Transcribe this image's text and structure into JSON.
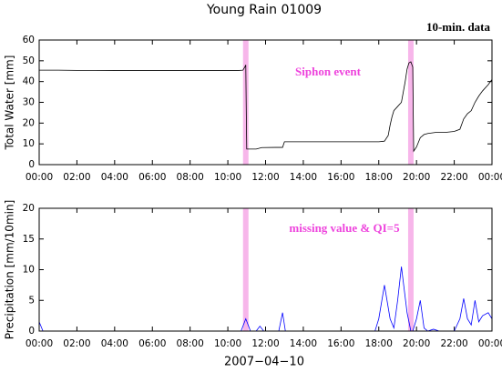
{
  "title": "Young Rain 01009",
  "note": "10-min. data",
  "xlabel": "2007−04−10",
  "chart_data": [
    {
      "type": "line",
      "ylabel": "Total Water [mm]",
      "annotation": "Siphon event",
      "xlim": [
        0,
        24
      ],
      "ylim": [
        0,
        60
      ],
      "yticks": [
        0,
        10,
        20,
        30,
        40,
        50,
        60
      ],
      "xticks": [
        {
          "value": 0,
          "label": "00:00"
        },
        {
          "value": 2,
          "label": "02:00"
        },
        {
          "value": 4,
          "label": "04:00"
        },
        {
          "value": 6,
          "label": "06:00"
        },
        {
          "value": 8,
          "label": "08:00"
        },
        {
          "value": 10,
          "label": "10:00"
        },
        {
          "value": 12,
          "label": "12:00"
        },
        {
          "value": 14,
          "label": "14:00"
        },
        {
          "value": 16,
          "label": "16:00"
        },
        {
          "value": 18,
          "label": "18:00"
        },
        {
          "value": 20,
          "label": "20:00"
        },
        {
          "value": 22,
          "label": "22:00"
        },
        {
          "value": 24,
          "label": "00:00"
        }
      ],
      "highlight_x": [
        10.95,
        19.7
      ],
      "highlight_color": "#f7b6ea",
      "x": [
        0,
        1,
        2,
        3,
        4,
        5,
        6,
        7,
        8,
        9,
        10,
        10.5,
        10.8,
        10.9,
        10.95,
        11.0,
        11.5,
        11.8,
        12.5,
        12.9,
        13.0,
        14,
        15,
        16,
        17,
        18,
        18.3,
        18.5,
        18.6,
        18.7,
        18.8,
        19.0,
        19.2,
        19.3,
        19.4,
        19.5,
        19.6,
        19.7,
        19.8,
        19.85,
        20.0,
        20.2,
        20.4,
        20.6,
        21,
        21.5,
        22,
        22.3,
        22.5,
        22.7,
        22.9,
        23.1,
        23.3,
        23.5,
        23.8,
        24
      ],
      "values": [
        45.5,
        45.5,
        45.4,
        45.4,
        45.3,
        45.3,
        45.3,
        45.3,
        45.3,
        45.3,
        45.3,
        45.3,
        45.5,
        47,
        48,
        7.5,
        7.5,
        8.2,
        8.3,
        8.3,
        11,
        11,
        11,
        11,
        11,
        11,
        11.3,
        14,
        19,
        23,
        26,
        28,
        30,
        35,
        40,
        46,
        49,
        49.5,
        47,
        6.5,
        8.5,
        13,
        14.5,
        15,
        15.5,
        15.5,
        16,
        17,
        22,
        24.5,
        26,
        30,
        33,
        35.5,
        38.5,
        41
      ],
      "color": "#000000"
    },
    {
      "type": "line",
      "ylabel": "Precipitation [mm/10min]",
      "annotation": "missing value & QI=5",
      "xlim": [
        0,
        24
      ],
      "ylim": [
        0,
        20
      ],
      "yticks": [
        0,
        5,
        10,
        15,
        20
      ],
      "xticks": [
        {
          "value": 0,
          "label": "00:00"
        },
        {
          "value": 2,
          "label": "02:00"
        },
        {
          "value": 4,
          "label": "04:00"
        },
        {
          "value": 6,
          "label": "06:00"
        },
        {
          "value": 8,
          "label": "08:00"
        },
        {
          "value": 10,
          "label": "10:00"
        },
        {
          "value": 12,
          "label": "12:00"
        },
        {
          "value": 14,
          "label": "14:00"
        },
        {
          "value": 16,
          "label": "16:00"
        },
        {
          "value": 18,
          "label": "18:00"
        },
        {
          "value": 20,
          "label": "20:00"
        },
        {
          "value": 22,
          "label": "22:00"
        },
        {
          "value": 24,
          "label": "00:00"
        }
      ],
      "highlight_x": [
        10.95,
        19.7
      ],
      "highlight_color": "#f7b6ea",
      "x": [
        0,
        0.2,
        1,
        2,
        4,
        6,
        8,
        10,
        10.7,
        10.95,
        11.2,
        11.5,
        11.7,
        11.9,
        12.7,
        12.9,
        13.05,
        14,
        16,
        17.8,
        18.0,
        18.3,
        18.6,
        18.8,
        19.0,
        19.2,
        19.5,
        19.7,
        19.8,
        20.0,
        20.2,
        20.4,
        20.6,
        20.9,
        21.2,
        22,
        22.3,
        22.5,
        22.7,
        22.9,
        23.1,
        23.3,
        23.5,
        23.8,
        24
      ],
      "values": [
        1.5,
        0,
        0,
        0,
        0,
        0,
        0,
        0,
        0,
        2,
        0,
        0,
        0.8,
        0,
        0,
        3,
        0,
        0,
        0,
        0,
        2,
        7.5,
        2,
        0.5,
        5,
        10.5,
        3,
        0,
        0,
        2,
        5,
        0.5,
        0,
        0.3,
        0,
        0,
        2,
        5.3,
        2,
        1,
        5,
        1.5,
        2.5,
        3,
        2
      ],
      "color": "#0000ff"
    }
  ]
}
